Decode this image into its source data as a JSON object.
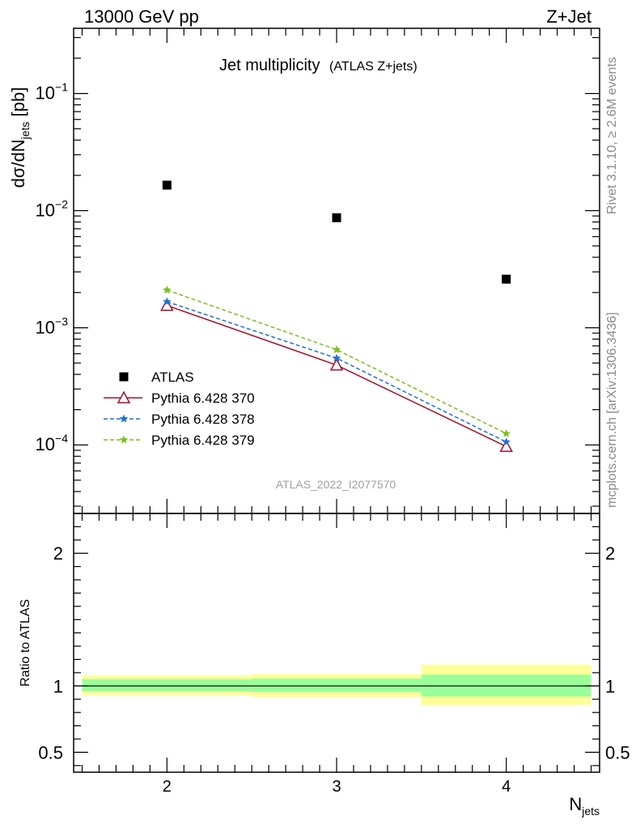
{
  "header": {
    "left": "13000 GeV pp",
    "right": "Z+Jet"
  },
  "side_text": {
    "rivet": "Rivet 3.1.10, ≥ 2.6M events",
    "mcplots": "mcplots.cern.ch [arXiv:1306.3436]"
  },
  "watermark": "ATLAS_2022_I2077570",
  "chart_data": [
    {
      "type": "scatter",
      "panel": "main",
      "title": "Jet multiplicity",
      "subtitle": "(ATLAS Z+jets)",
      "ylabel": "dσ/dN",
      "ylabel_sub": "jets",
      "ylabel_unit": " [pb]",
      "yscale": "log",
      "ylim": [
        2.6e-05,
        0.36
      ],
      "xlim": [
        1.45,
        4.55
      ],
      "x_ticks": [
        "2",
        "3",
        "4"
      ],
      "y_ticks": [
        {
          "base": "10",
          "exp": "−1",
          "value": 0.1
        },
        {
          "base": "10",
          "exp": "−2",
          "value": 0.01
        },
        {
          "base": "10",
          "exp": "−3",
          "value": 0.001
        },
        {
          "base": "10",
          "exp": "−4",
          "value": 0.0001
        }
      ],
      "legend_position": "lower-left",
      "x": [
        2,
        3,
        4
      ],
      "series": [
        {
          "name": "ATLAS",
          "values": [
            0.0165,
            0.0087,
            0.0026
          ],
          "color": "#000000",
          "marker": "square",
          "line": "none"
        },
        {
          "name": "Pythia 6.428 370",
          "values": [
            0.00155,
            0.00048,
            9.7e-05
          ],
          "color": "#a50f28",
          "marker": "triangle-open",
          "line": "solid"
        },
        {
          "name": "Pythia 6.428 378",
          "values": [
            0.00167,
            0.00055,
            0.000106
          ],
          "color": "#1f6fd6",
          "marker": "star",
          "line": "dashed"
        },
        {
          "name": "Pythia 6.428 379",
          "values": [
            0.0021,
            0.00065,
            0.000125
          ],
          "color": "#7cbf1f",
          "marker": "star",
          "line": "dashed"
        }
      ]
    },
    {
      "type": "line",
      "panel": "ratio",
      "ylabel": "Ratio to ATLAS",
      "ylim": [
        0.35,
        2.3
      ],
      "xlim": [
        1.45,
        4.55
      ],
      "xlabel": "N",
      "xlabel_sub": "jets",
      "x_ticks": [
        "2",
        "3",
        "4"
      ],
      "y_ticks": [
        "2",
        "1",
        "0.5"
      ],
      "bands": [
        {
          "x_low": 1.5,
          "x_high": 2.5,
          "stat_low": 0.96,
          "stat_high": 1.05,
          "total_low": 0.93,
          "total_high": 1.08,
          "inner_color": "#99ff99",
          "outer_color": "#ffff99"
        },
        {
          "x_low": 2.5,
          "x_high": 3.5,
          "stat_low": 0.955,
          "stat_high": 1.055,
          "total_low": 0.915,
          "total_high": 1.09,
          "inner_color": "#99ff99",
          "outer_color": "#ffff99"
        },
        {
          "x_low": 3.5,
          "x_high": 4.5,
          "stat_low": 0.92,
          "stat_high": 1.085,
          "total_low": 0.855,
          "total_high": 1.16,
          "inner_color": "#99ff99",
          "outer_color": "#ffff99"
        }
      ],
      "reference_value": 1
    }
  ]
}
